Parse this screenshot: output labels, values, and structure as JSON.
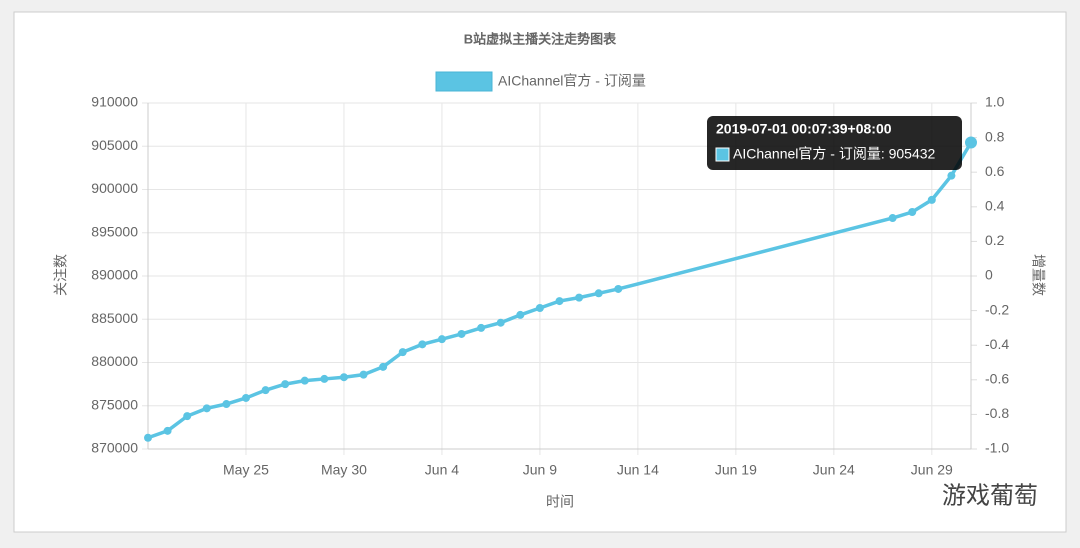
{
  "chart_data": {
    "type": "line",
    "title": "B站虚拟主播关注走势图表",
    "x": [
      "2019-05-20",
      "2019-05-21",
      "2019-05-22",
      "2019-05-23",
      "2019-05-24",
      "2019-05-25",
      "2019-05-26",
      "2019-05-27",
      "2019-05-28",
      "2019-05-29",
      "2019-05-30",
      "2019-05-31",
      "2019-06-01",
      "2019-06-02",
      "2019-06-03",
      "2019-06-04",
      "2019-06-05",
      "2019-06-06",
      "2019-06-07",
      "2019-06-08",
      "2019-06-09",
      "2019-06-10",
      "2019-06-11",
      "2019-06-12",
      "2019-06-13",
      "2019-06-27",
      "2019-06-28",
      "2019-06-29",
      "2019-06-30",
      "2019-07-01"
    ],
    "series": [
      {
        "name": "AIChannel官方 - 订阅量",
        "color": "#5bc4e3",
        "values": [
          871300,
          872100,
          873800,
          874700,
          875200,
          875900,
          876800,
          877500,
          877900,
          878100,
          878300,
          878600,
          879500,
          881200,
          882100,
          882700,
          883300,
          884000,
          884600,
          885500,
          886300,
          887100,
          887500,
          888000,
          888500,
          896700,
          897400,
          898800,
          901600,
          905432
        ]
      }
    ],
    "xlabel": "时间",
    "ylabel": "关注数",
    "y2label": "增量数",
    "xlim": [
      "2019-05-20",
      "2019-07-01"
    ],
    "xticks": [
      {
        "value": "2019-05-25",
        "label": "May 25"
      },
      {
        "value": "2019-05-30",
        "label": "May 30"
      },
      {
        "value": "2019-06-04",
        "label": "Jun 4"
      },
      {
        "value": "2019-06-09",
        "label": "Jun 9"
      },
      {
        "value": "2019-06-14",
        "label": "Jun 14"
      },
      {
        "value": "2019-06-19",
        "label": "Jun 19"
      },
      {
        "value": "2019-06-24",
        "label": "Jun 24"
      },
      {
        "value": "2019-06-29",
        "label": "Jun 29"
      }
    ],
    "ylim": [
      870000,
      910000
    ],
    "yticks": [
      870000,
      875000,
      880000,
      885000,
      890000,
      895000,
      900000,
      905000,
      910000
    ],
    "y2lim": [
      -1,
      1
    ],
    "y2ticks": [
      {
        "value": -1,
        "label": "-1.0"
      },
      -0.8,
      -0.6,
      -0.4,
      -0.2,
      0,
      0.2,
      0.4,
      0.6,
      0.8,
      {
        "value": 1,
        "label": "1.0"
      }
    ],
    "grid": true,
    "tooltip": {
      "title": "2019-07-01 00:07:39+08:00",
      "label": "AIChannel官方 - 订阅量: 905432",
      "index": 29
    },
    "watermark": "游戏葡萄"
  }
}
